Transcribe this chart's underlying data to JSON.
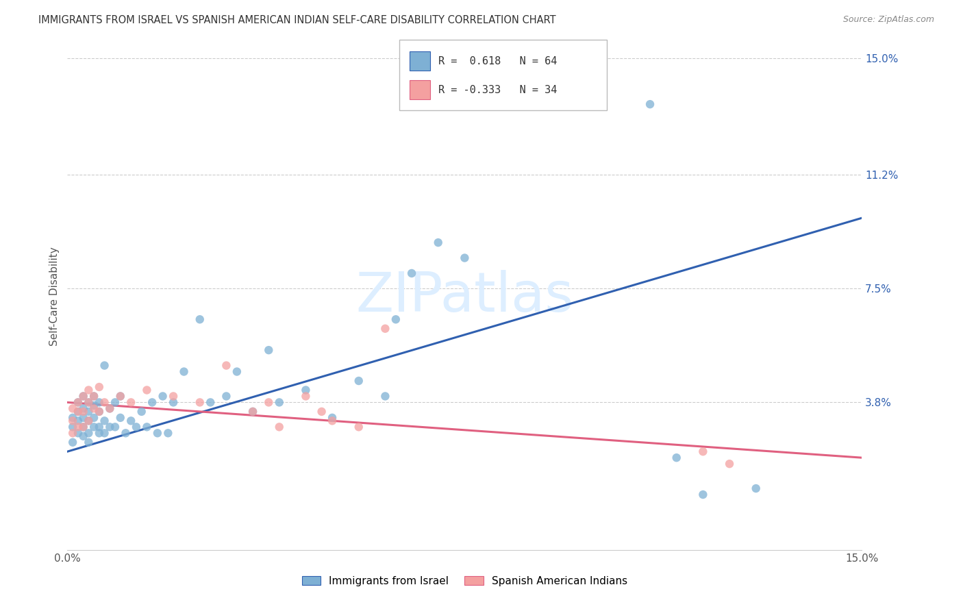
{
  "title": "IMMIGRANTS FROM ISRAEL VS SPANISH AMERICAN INDIAN SELF-CARE DISABILITY CORRELATION CHART",
  "source": "Source: ZipAtlas.com",
  "ylabel": "Self-Care Disability",
  "watermark": "ZIPatlas",
  "xmin": 0.0,
  "xmax": 0.15,
  "ymin": -0.01,
  "ymax": 0.155,
  "yticks": [
    0.038,
    0.075,
    0.112,
    0.15
  ],
  "ytick_labels": [
    "3.8%",
    "7.5%",
    "11.2%",
    "15.0%"
  ],
  "xticks": [
    0.0,
    0.05,
    0.1,
    0.15
  ],
  "xtick_labels": [
    "0.0%",
    "",
    "",
    "15.0%"
  ],
  "legend_label1": "Immigrants from Israel",
  "legend_label2": "Spanish American Indians",
  "blue_color": "#7EB0D4",
  "pink_color": "#F4A0A0",
  "blue_line_color": "#3060B0",
  "pink_line_color": "#E06080",
  "blue_line_x0": 0.0,
  "blue_line_y0": 0.022,
  "blue_line_x1": 0.15,
  "blue_line_y1": 0.098,
  "pink_line_x0": 0.0,
  "pink_line_y0": 0.038,
  "pink_line_x1": 0.15,
  "pink_line_y1": 0.02,
  "blue_x": [
    0.001,
    0.001,
    0.001,
    0.002,
    0.002,
    0.002,
    0.002,
    0.003,
    0.003,
    0.003,
    0.003,
    0.003,
    0.004,
    0.004,
    0.004,
    0.004,
    0.004,
    0.005,
    0.005,
    0.005,
    0.005,
    0.006,
    0.006,
    0.006,
    0.006,
    0.007,
    0.007,
    0.007,
    0.008,
    0.008,
    0.009,
    0.009,
    0.01,
    0.01,
    0.011,
    0.012,
    0.013,
    0.014,
    0.015,
    0.016,
    0.017,
    0.018,
    0.019,
    0.02,
    0.022,
    0.025,
    0.027,
    0.03,
    0.032,
    0.035,
    0.038,
    0.04,
    0.045,
    0.05,
    0.055,
    0.06,
    0.062,
    0.065,
    0.07,
    0.075,
    0.11,
    0.115,
    0.12,
    0.13
  ],
  "blue_y": [
    0.025,
    0.03,
    0.033,
    0.028,
    0.032,
    0.035,
    0.038,
    0.027,
    0.03,
    0.033,
    0.036,
    0.04,
    0.025,
    0.028,
    0.032,
    0.035,
    0.038,
    0.03,
    0.033,
    0.037,
    0.04,
    0.028,
    0.03,
    0.035,
    0.038,
    0.028,
    0.032,
    0.05,
    0.03,
    0.036,
    0.03,
    0.038,
    0.033,
    0.04,
    0.028,
    0.032,
    0.03,
    0.035,
    0.03,
    0.038,
    0.028,
    0.04,
    0.028,
    0.038,
    0.048,
    0.065,
    0.038,
    0.04,
    0.048,
    0.035,
    0.055,
    0.038,
    0.042,
    0.033,
    0.045,
    0.04,
    0.065,
    0.08,
    0.09,
    0.085,
    0.135,
    0.02,
    0.008,
    0.01
  ],
  "pink_x": [
    0.001,
    0.001,
    0.001,
    0.002,
    0.002,
    0.002,
    0.003,
    0.003,
    0.003,
    0.004,
    0.004,
    0.004,
    0.005,
    0.005,
    0.006,
    0.006,
    0.007,
    0.008,
    0.01,
    0.012,
    0.015,
    0.02,
    0.025,
    0.03,
    0.035,
    0.038,
    0.04,
    0.045,
    0.048,
    0.05,
    0.055,
    0.06,
    0.12,
    0.125
  ],
  "pink_y": [
    0.028,
    0.032,
    0.036,
    0.03,
    0.035,
    0.038,
    0.03,
    0.035,
    0.04,
    0.032,
    0.038,
    0.042,
    0.036,
    0.04,
    0.035,
    0.043,
    0.038,
    0.036,
    0.04,
    0.038,
    0.042,
    0.04,
    0.038,
    0.05,
    0.035,
    0.038,
    0.03,
    0.04,
    0.035,
    0.032,
    0.03,
    0.062,
    0.022,
    0.018
  ]
}
